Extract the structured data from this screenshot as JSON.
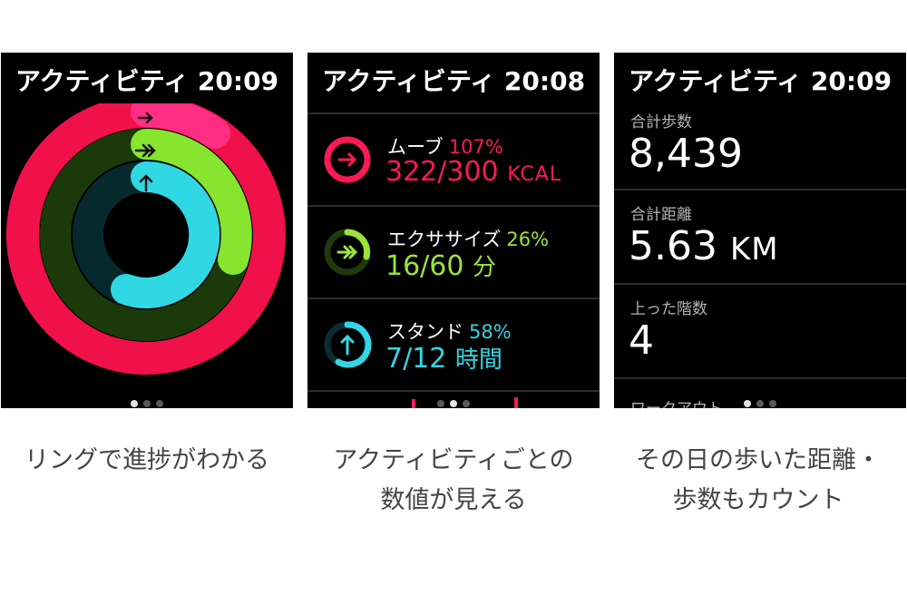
{
  "panels": [
    {
      "title": "アクティビティ 20:09",
      "rings": {
        "move_progress": 1.07,
        "exercise_progress": 0.26,
        "stand_progress": 0.58
      },
      "caption": "リングで進捗がわかる"
    },
    {
      "title": "アクティビティ 20:08",
      "rows": [
        {
          "name": "ムーブ",
          "percent": "107%",
          "value": "322/300",
          "unit": "KCAL",
          "color": "#fa1a55",
          "icon": "arrow-right-icon",
          "progress": 1.07
        },
        {
          "name": "エクササイズ",
          "percent": "26%",
          "value": "16/60",
          "unit": "分",
          "color": "#9be33a",
          "icon": "double-arrow-right-icon",
          "progress": 0.26
        },
        {
          "name": "スタンド",
          "percent": "58%",
          "value": "7/12",
          "unit": "時間",
          "color": "#33d6e4",
          "icon": "arrow-up-icon",
          "progress": 0.58
        }
      ],
      "caption": "アクティビティごとの数値が見える"
    },
    {
      "title": "アクティビティ 20:09",
      "stats": [
        {
          "label": "合計歩数",
          "value": "8,439",
          "unit": ""
        },
        {
          "label": "合計距離",
          "value": "5.63",
          "unit": "KM"
        },
        {
          "label": "上った階数",
          "value": "4",
          "unit": ""
        },
        {
          "label": "ワークアウト",
          "value": "",
          "unit": ""
        }
      ],
      "caption_line1": "その日の歩いた距離・",
      "caption_line2": "歩数もカウント"
    }
  ],
  "captions": {
    "p1": "リングで進捗がわかる",
    "p2_line1": "アクティビティごとの",
    "p2_line2": "数値が見える",
    "p3_line1": "その日の歩いた距離・",
    "p3_line2": "歩数もカウント"
  },
  "page_indicator": {
    "pages": 3,
    "active": 1
  },
  "colors": {
    "move": "#fa1a55",
    "exercise": "#9be33a",
    "stand": "#33d6e4",
    "background": "#000000"
  }
}
